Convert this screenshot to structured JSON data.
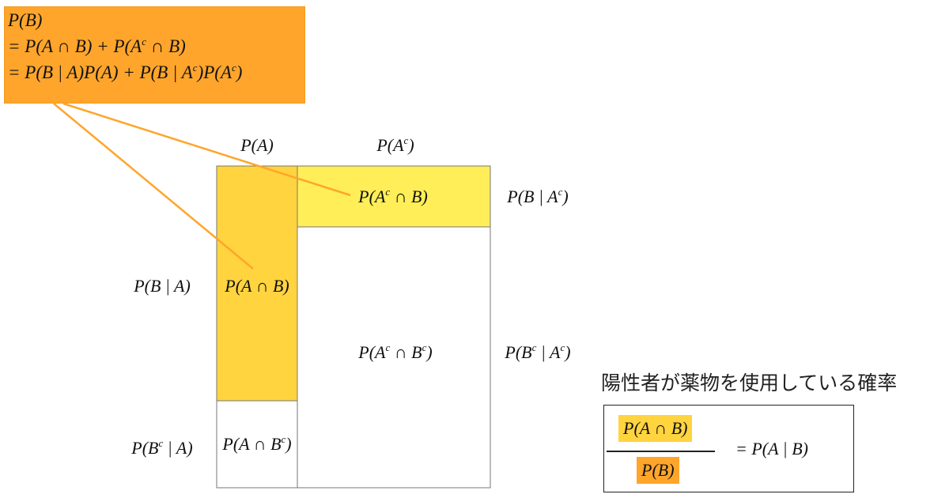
{
  "formula_box": {
    "lines": [
      "P(B)",
      "= P(A ∩ B) + P(A^c ∩ B)",
      "= P(B | A)P(A) + P(B | A^c)P(A^c)"
    ],
    "color": "#FFA52C"
  },
  "column_labels": {
    "a": "P(A)",
    "ac": "P(A^c)"
  },
  "row_labels": {
    "b_given_a": "P(B | A)",
    "bc_given_a": "P(B^c | A)",
    "b_given_ac": "P(B | A^c)",
    "bc_given_ac": "P(B^c | A^c)"
  },
  "cells": {
    "a_and_b": "P(A ∩ B)",
    "a_and_bc": "P(A ∩ B^c)",
    "ac_and_b": "P(A^c ∩ B)",
    "ac_and_bc": "P(A^c ∩ B^c)"
  },
  "colors": {
    "a_and_b": "#FFD43F",
    "ac_and_b": "#FFEE58",
    "connector": "#FFA52C"
  },
  "result": {
    "caption": "陽性者が薬物を使用している確率",
    "numerator": "P(A ∩ B)",
    "denominator": "P(B)",
    "rhs": "= P(A | B)"
  }
}
